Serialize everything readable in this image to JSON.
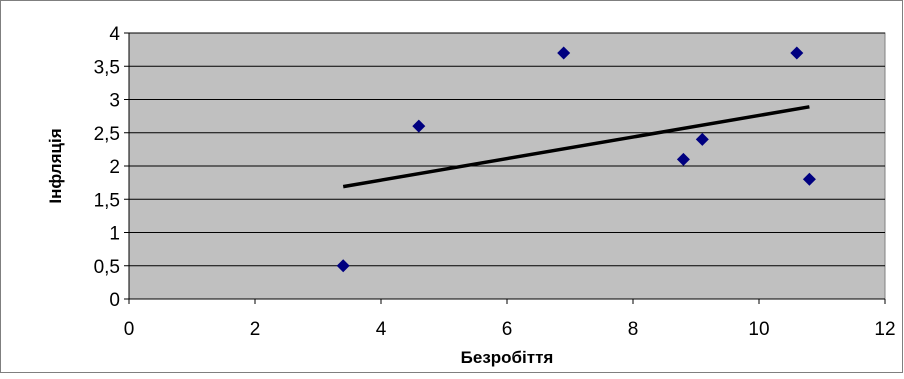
{
  "chart_data": {
    "type": "scatter",
    "xlabel": "Безробіття",
    "ylabel": "Інфляція",
    "xlim": [
      0,
      12
    ],
    "ylim": [
      0,
      4
    ],
    "xticks": [
      0,
      2,
      4,
      6,
      8,
      10,
      12
    ],
    "xtick_labels": [
      "0",
      "2",
      "4",
      "6",
      "8",
      "10",
      "12"
    ],
    "yticks": [
      0,
      0.5,
      1,
      1.5,
      2,
      2.5,
      3,
      3.5,
      4
    ],
    "ytick_labels": [
      "0",
      "0,5",
      "1",
      "1,5",
      "2",
      "2,5",
      "3",
      "3,5",
      "4"
    ],
    "grid": "horizontal",
    "series": [
      {
        "x": [
          3.4,
          4.6,
          6.9,
          8.8,
          9.1,
          10.6,
          10.8
        ],
        "y": [
          0.5,
          2.6,
          3.7,
          2.1,
          2.4,
          3.7,
          1.8
        ]
      }
    ],
    "trendline": {
      "type": "linear",
      "x": [
        3.4,
        10.8
      ],
      "y": [
        1.69,
        2.89
      ]
    },
    "colors": {
      "plot_background": "#c0c0c0",
      "gridline": "#000000",
      "marker": "#000080",
      "trendline": "#000000"
    }
  }
}
